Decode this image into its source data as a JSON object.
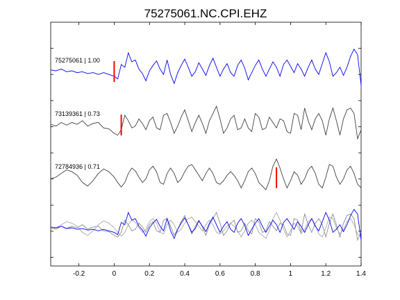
{
  "chart_data": {
    "type": "line",
    "title": "75275061.NC.CPI.EHZ",
    "xlabel": "",
    "ylabel": "",
    "xlim": [
      -0.36,
      1.4
    ],
    "xticks": [
      -0.2,
      0,
      0.2,
      0.4,
      0.6,
      0.8,
      1,
      1.2,
      1.4
    ],
    "xtick_labels": [
      "-0.2",
      "0",
      "0.2",
      "0.4",
      "0.6",
      "0.8",
      "1",
      "1.2",
      "1.4"
    ],
    "grid": false,
    "colors": {
      "reference": "#0000ff",
      "correlated": "#404040",
      "overlay": "#8c8c8c",
      "pick": "#ff0000",
      "axes": "#000000"
    },
    "traces": [
      {
        "name": "75275061 | 1.00",
        "color": "#0000ff",
        "pick_time": 0.0,
        "x": [
          -0.36,
          -0.33,
          -0.3,
          -0.27,
          -0.24,
          -0.21,
          -0.18,
          -0.15,
          -0.12,
          -0.09,
          -0.06,
          -0.03,
          0.0,
          0.02,
          0.04,
          0.06,
          0.08,
          0.1,
          0.12,
          0.14,
          0.16,
          0.18,
          0.2,
          0.22,
          0.24,
          0.26,
          0.28,
          0.3,
          0.32,
          0.34,
          0.36,
          0.38,
          0.4,
          0.42,
          0.44,
          0.46,
          0.48,
          0.5,
          0.52,
          0.54,
          0.56,
          0.58,
          0.6,
          0.62,
          0.64,
          0.66,
          0.68,
          0.7,
          0.72,
          0.74,
          0.76,
          0.78,
          0.8,
          0.82,
          0.84,
          0.86,
          0.88,
          0.9,
          0.92,
          0.94,
          0.96,
          0.98,
          1.0,
          1.02,
          1.04,
          1.06,
          1.08,
          1.1,
          1.12,
          1.14,
          1.16,
          1.18,
          1.2,
          1.22,
          1.24,
          1.26,
          1.28,
          1.3,
          1.32,
          1.34,
          1.36,
          1.38,
          1.4
        ],
        "y": [
          0.05,
          0.0,
          0.1,
          -0.05,
          0.0,
          -0.1,
          -0.05,
          -0.15,
          -0.1,
          -0.2,
          -0.1,
          -0.2,
          -0.3,
          -0.45,
          0.35,
          0.2,
          1.0,
          0.5,
          0.6,
          0.1,
          -0.15,
          -0.55,
          0.0,
          0.3,
          0.55,
          0.1,
          -0.2,
          0.6,
          -0.2,
          -0.7,
          -0.1,
          0.3,
          0.65,
          0.2,
          -0.3,
          -0.05,
          0.45,
          0.1,
          -0.25,
          0.3,
          0.7,
          0.2,
          -0.3,
          0.1,
          0.4,
          -0.1,
          -0.3,
          0.3,
          0.6,
          0.15,
          -0.5,
          -0.1,
          0.3,
          0.6,
          0.1,
          -0.3,
          0.1,
          0.5,
          0.2,
          -0.3,
          0.35,
          0.6,
          0.25,
          -0.1,
          0.4,
          0.1,
          -0.3,
          0.2,
          0.6,
          0.1,
          -0.2,
          0.4,
          1.0,
          0.5,
          -0.3,
          -0.1,
          0.2,
          -0.25,
          0.2,
          0.8,
          1.2,
          0.9,
          -0.8
        ]
      },
      {
        "name": "73139361 | 0.73",
        "color": "#404040",
        "pick_time": 0.04,
        "x": [
          -0.36,
          -0.33,
          -0.3,
          -0.27,
          -0.24,
          -0.21,
          -0.18,
          -0.15,
          -0.12,
          -0.09,
          -0.06,
          -0.03,
          0.0,
          0.02,
          0.04,
          0.06,
          0.08,
          0.1,
          0.12,
          0.14,
          0.16,
          0.18,
          0.2,
          0.22,
          0.24,
          0.26,
          0.28,
          0.3,
          0.32,
          0.34,
          0.36,
          0.38,
          0.4,
          0.42,
          0.44,
          0.46,
          0.48,
          0.5,
          0.52,
          0.54,
          0.56,
          0.58,
          0.6,
          0.62,
          0.64,
          0.66,
          0.68,
          0.7,
          0.72,
          0.74,
          0.76,
          0.78,
          0.8,
          0.82,
          0.84,
          0.86,
          0.88,
          0.9,
          0.92,
          0.94,
          0.96,
          0.98,
          1.0,
          1.02,
          1.04,
          1.06,
          1.08,
          1.1,
          1.12,
          1.14,
          1.16,
          1.18,
          1.2,
          1.22,
          1.24,
          1.26,
          1.28,
          1.3,
          1.32,
          1.34,
          1.36,
          1.38,
          1.4
        ],
        "y": [
          0.0,
          -0.1,
          0.1,
          -0.05,
          0.1,
          0.0,
          0.2,
          -0.1,
          0.05,
          0.1,
          -0.2,
          -0.25,
          -0.5,
          -0.6,
          -0.3,
          0.5,
          0.2,
          -0.2,
          -0.1,
          0.3,
          0.05,
          -0.3,
          0.2,
          0.4,
          -0.2,
          -0.3,
          0.5,
          0.6,
          0.1,
          -0.5,
          -0.1,
          0.4,
          0.8,
          0.2,
          -0.4,
          0.1,
          0.5,
          0.05,
          -0.5,
          0.2,
          0.6,
          1.0,
          0.3,
          -0.5,
          -0.2,
          0.3,
          0.5,
          -0.3,
          -0.2,
          0.3,
          -0.2,
          -0.4,
          0.6,
          0.4,
          -0.3,
          -0.2,
          0.4,
          0.1,
          -0.2,
          0.3,
          0.2,
          -0.4,
          -0.5,
          0.6,
          0.5,
          -0.3,
          0.9,
          0.2,
          -0.3,
          0.3,
          0.6,
          0.2,
          -0.6,
          0.3,
          0.9,
          0.2,
          -0.6,
          0.3,
          0.8,
          0.9,
          0.6,
          -0.8,
          -0.3
        ]
      },
      {
        "name": "72784936 | 0.71",
        "color": "#404040",
        "pick_time": 0.92,
        "x": [
          -0.36,
          -0.33,
          -0.3,
          -0.27,
          -0.24,
          -0.21,
          -0.18,
          -0.15,
          -0.12,
          -0.09,
          -0.06,
          -0.03,
          0.0,
          0.02,
          0.04,
          0.06,
          0.08,
          0.1,
          0.12,
          0.14,
          0.16,
          0.18,
          0.2,
          0.22,
          0.24,
          0.26,
          0.28,
          0.3,
          0.32,
          0.34,
          0.36,
          0.38,
          0.4,
          0.42,
          0.44,
          0.46,
          0.48,
          0.5,
          0.52,
          0.54,
          0.56,
          0.58,
          0.6,
          0.62,
          0.64,
          0.66,
          0.68,
          0.7,
          0.72,
          0.74,
          0.76,
          0.78,
          0.8,
          0.82,
          0.84,
          0.86,
          0.88,
          0.9,
          0.92,
          0.94,
          0.96,
          0.98,
          1.0,
          1.02,
          1.04,
          1.06,
          1.08,
          1.1,
          1.12,
          1.14,
          1.16,
          1.18,
          1.2,
          1.22,
          1.24,
          1.26,
          1.28,
          1.3,
          1.32,
          1.34,
          1.36,
          1.38,
          1.4
        ],
        "y": [
          -0.1,
          0.0,
          0.2,
          0.4,
          0.3,
          0.1,
          -0.3,
          -0.5,
          -0.2,
          0.2,
          0.45,
          0.3,
          0.0,
          -0.3,
          -0.55,
          -0.3,
          0.2,
          0.5,
          0.35,
          0.0,
          -0.3,
          -0.1,
          0.4,
          0.6,
          0.3,
          -0.3,
          -0.4,
          0.2,
          0.5,
          0.2,
          -0.3,
          -0.1,
          0.3,
          0.6,
          0.7,
          0.4,
          0.1,
          -0.2,
          0.2,
          0.5,
          0.2,
          -0.3,
          -0.4,
          -0.2,
          0.1,
          0.3,
          0.1,
          -0.2,
          -0.6,
          -0.2,
          0.3,
          0.5,
          0.2,
          -0.3,
          -0.5,
          -0.7,
          -0.2,
          0.6,
          1.0,
          0.5,
          -0.1,
          -0.6,
          -0.2,
          0.3,
          0.1,
          -0.4,
          -0.1,
          0.4,
          0.6,
          0.2,
          -0.4,
          -0.6,
          0.0,
          0.7,
          0.6,
          0.0,
          -0.4,
          -0.1,
          0.4,
          0.6,
          0.2,
          -0.4,
          -0.6
        ]
      }
    ],
    "overlay": {
      "description": "all traces aligned and superimposed",
      "traces": [
        "75275061 | 1.00",
        "73139361 | 0.73",
        "72784936 | 0.71"
      ]
    }
  }
}
